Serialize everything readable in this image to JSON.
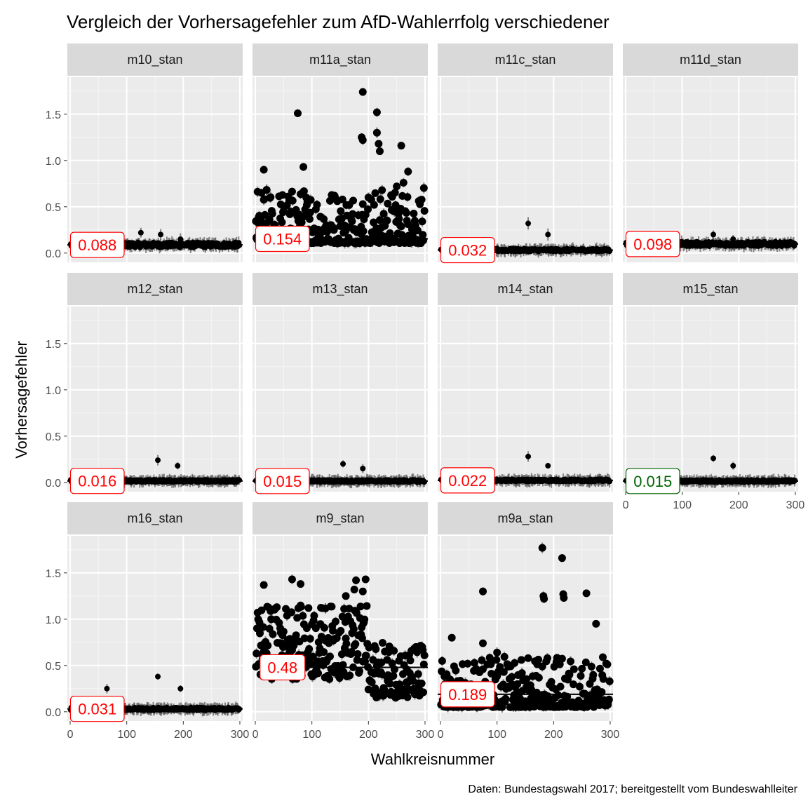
{
  "title": "Vergleich der Vorhersagefehler zum AfD-Wahlerrfolg verschiedener",
  "caption": "Daten: Bundestagswahl 2017; bereitgestellt vom Bundeswahlleiter",
  "chart_data": {
    "type": "scatter",
    "facets": true,
    "xlabel": "Wahlkreisnummer",
    "ylabel": "Vorhersagefehler",
    "xlim": [
      -5,
      305
    ],
    "ylim": [
      -0.1,
      1.9
    ],
    "x_ticks": [
      0,
      100,
      200,
      300
    ],
    "y_ticks": [
      "0.0",
      "0.5",
      "1.0",
      "1.5"
    ],
    "y_tick_values": [
      0,
      0.5,
      1.0,
      1.5
    ],
    "grid": true,
    "colors": {
      "panel_bg": "#ebebeb",
      "strip_bg": "#d9d9d9",
      "point": "#000000",
      "errorbar": "#595959",
      "label_default": "#ff0000",
      "label_best": "#006400"
    },
    "panels": [
      {
        "name": "m10_stan",
        "mean": 0.088,
        "label": "0.088",
        "best": false,
        "pattern": "flat",
        "spread": 0.09,
        "spikes": [
          [
            125,
            0.22
          ],
          [
            160,
            0.2
          ],
          [
            195,
            0.15
          ]
        ]
      },
      {
        "name": "m11a_stan",
        "mean": 0.154,
        "label": "0.154",
        "best": false,
        "pattern": "scatter",
        "spread": 0.6,
        "spikes": [
          [
            75,
            1.51
          ],
          [
            85,
            0.93
          ],
          [
            15,
            0.9
          ],
          [
            20,
            0.68
          ],
          [
            190,
            1.74
          ],
          [
            215,
            1.52
          ],
          [
            188,
            1.25
          ],
          [
            190,
            1.22
          ],
          [
            215,
            1.3
          ],
          [
            218,
            1.18
          ],
          [
            220,
            1.1
          ],
          [
            258,
            1.16
          ],
          [
            270,
            0.88
          ],
          [
            250,
            0.72
          ],
          [
            262,
            0.76
          ],
          [
            140,
            0.62
          ]
        ]
      },
      {
        "name": "m11c_stan",
        "mean": 0.032,
        "label": "0.032",
        "best": false,
        "pattern": "flat",
        "spread": 0.05,
        "spikes": [
          [
            155,
            0.32
          ],
          [
            190,
            0.2
          ]
        ]
      },
      {
        "name": "m11d_stan",
        "mean": 0.098,
        "label": "0.098",
        "best": false,
        "pattern": "flat",
        "spread": 0.08,
        "spikes": [
          [
            155,
            0.2
          ],
          [
            190,
            0.15
          ]
        ]
      },
      {
        "name": "m12_stan",
        "mean": 0.016,
        "label": "0.016",
        "best": false,
        "pattern": "flat",
        "spread": 0.04,
        "spikes": [
          [
            155,
            0.24
          ],
          [
            190,
            0.18
          ]
        ]
      },
      {
        "name": "m13_stan",
        "mean": 0.015,
        "label": "0.015",
        "best": false,
        "pattern": "flat",
        "spread": 0.04,
        "spikes": [
          [
            155,
            0.2
          ],
          [
            190,
            0.15
          ]
        ]
      },
      {
        "name": "m14_stan",
        "mean": 0.022,
        "label": "0.022",
        "best": false,
        "pattern": "flat",
        "spread": 0.04,
        "spikes": [
          [
            155,
            0.28
          ],
          [
            190,
            0.18
          ]
        ]
      },
      {
        "name": "m15_stan",
        "mean": 0.015,
        "label": "0.015",
        "best": true,
        "pattern": "flat",
        "spread": 0.04,
        "spikes": [
          [
            155,
            0.26
          ],
          [
            190,
            0.18
          ]
        ]
      },
      {
        "name": "m16_stan",
        "mean": 0.031,
        "label": "0.031",
        "best": false,
        "pattern": "flat",
        "spread": 0.05,
        "spikes": [
          [
            65,
            0.25
          ],
          [
            155,
            0.38
          ],
          [
            195,
            0.25
          ]
        ]
      },
      {
        "name": "m9_stan",
        "mean": 0.48,
        "label": "0.48",
        "best": false,
        "pattern": "wide",
        "spread": 1.0,
        "spikes": [
          [
            15,
            1.37
          ],
          [
            65,
            1.43
          ],
          [
            80,
            1.38
          ],
          [
            178,
            1.42
          ],
          [
            195,
            1.43
          ],
          [
            190,
            1.3
          ],
          [
            175,
            1.32
          ],
          [
            160,
            1.25
          ]
        ]
      },
      {
        "name": "m9a_stan",
        "mean": 0.189,
        "label": "0.189",
        "best": false,
        "pattern": "scatter2",
        "spread": 0.55,
        "spikes": [
          [
            75,
            1.3
          ],
          [
            180,
            1.77
          ],
          [
            182,
            1.25
          ],
          [
            183,
            1.22
          ],
          [
            215,
            1.66
          ],
          [
            217,
            1.27
          ],
          [
            218,
            1.23
          ],
          [
            258,
            1.28
          ],
          [
            275,
            0.95
          ],
          [
            20,
            0.8
          ],
          [
            75,
            0.74
          ],
          [
            100,
            0.64
          ]
        ]
      }
    ]
  }
}
